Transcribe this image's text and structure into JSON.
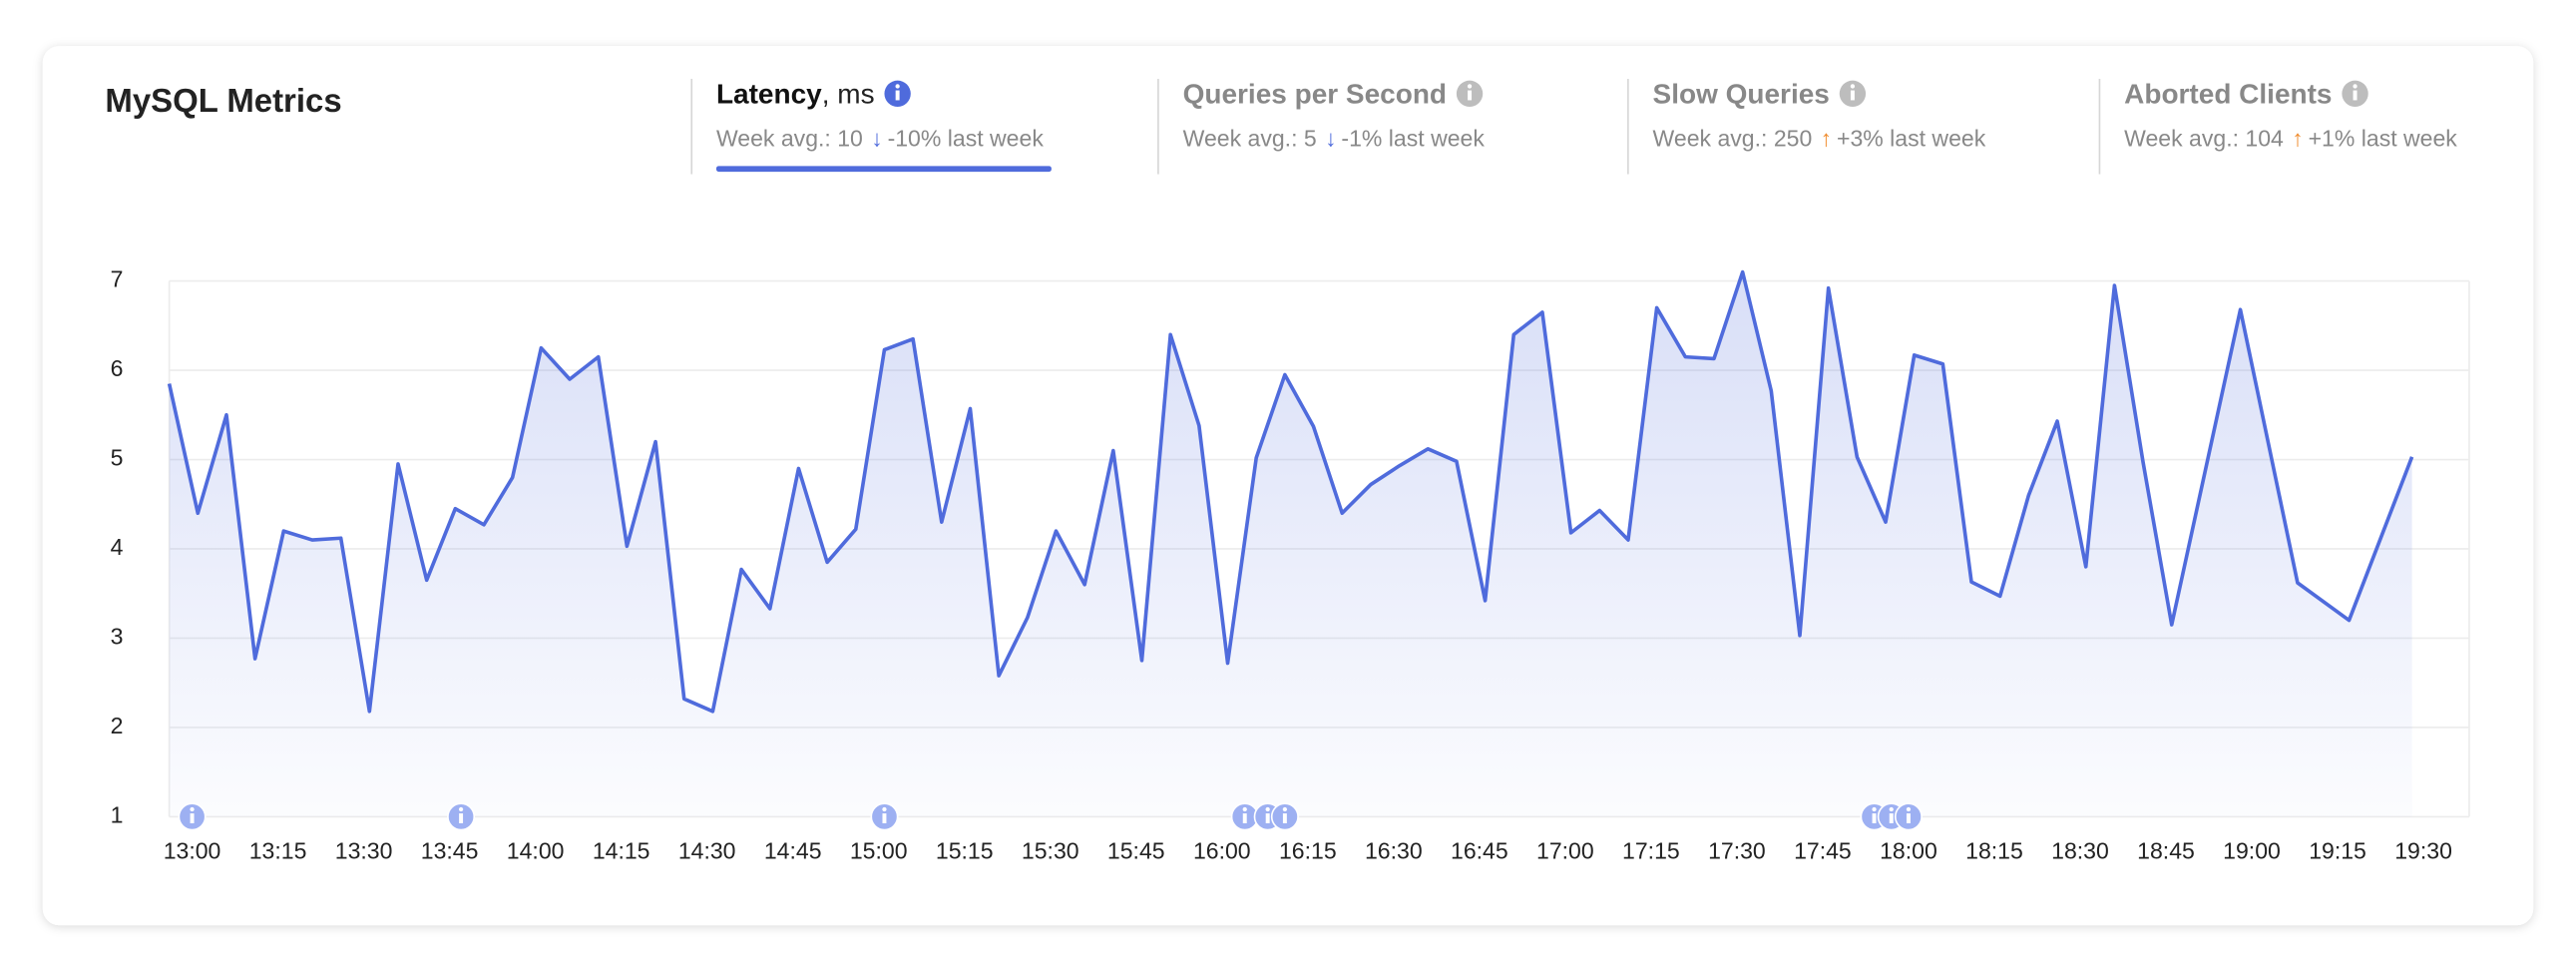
{
  "header": {
    "title": "MySQL Metrics"
  },
  "tabs": [
    {
      "name": "Latency",
      "unit": ", ms",
      "summary": "Week avg.: 10",
      "trend": "↓",
      "trend_color": "#4f6bdc",
      "change": "-10% last week",
      "active": true
    },
    {
      "name": "Queries per Second",
      "summary": "Week avg.: 5",
      "trend": "↓",
      "trend_color": "#4f6bdc",
      "change": "-1% last week",
      "active": false
    },
    {
      "name": "Slow Queries",
      "summary": "Week avg.: 250",
      "trend": "↑",
      "trend_color": "#f08c2e",
      "change": "+3% last week",
      "active": false
    },
    {
      "name": "Aborted Clients",
      "summary": "Week avg.: 104",
      "trend": "↑",
      "trend_color": "#f08c2e",
      "change": "+1% last week",
      "active": false
    }
  ],
  "chart_data": {
    "type": "line",
    "color": "#4f6bdc",
    "grid": true,
    "x": [
      "12:56",
      "13:01",
      "13:06",
      "13:11",
      "13:16",
      "13:21",
      "13:26",
      "13:31",
      "13:36",
      "13:41",
      "13:46",
      "13:51",
      "13:56",
      "14:01",
      "14:06",
      "14:11",
      "14:16",
      "14:21",
      "14:26",
      "14:31",
      "14:36",
      "14:41",
      "14:46",
      "14:51",
      "14:56",
      "15:01",
      "15:06",
      "15:11",
      "15:16",
      "15:21",
      "15:26",
      "15:31",
      "15:36",
      "15:41",
      "15:46",
      "15:51",
      "15:56",
      "16:01",
      "16:06",
      "16:11",
      "16:16",
      "16:21",
      "16:26",
      "16:31",
      "16:36",
      "16:41",
      "16:46",
      "16:51",
      "16:56",
      "17:01",
      "17:06",
      "17:11",
      "17:16",
      "17:21",
      "17:26",
      "17:31",
      "17:36",
      "17:41",
      "17:46",
      "17:51",
      "17:56",
      "18:01",
      "18:06",
      "18:11",
      "18:16",
      "18:21",
      "18:26",
      "18:31",
      "18:36",
      "18:41",
      "18:46",
      "18:58",
      "19:08",
      "19:17",
      "19:28"
    ],
    "values": [
      5.85,
      4.4,
      5.5,
      2.77,
      4.2,
      4.1,
      4.12,
      2.18,
      4.95,
      3.65,
      4.45,
      4.27,
      4.8,
      6.25,
      5.9,
      6.15,
      4.03,
      5.2,
      2.32,
      2.18,
      3.77,
      3.33,
      4.9,
      3.85,
      4.22,
      6.23,
      6.35,
      4.3,
      5.57,
      2.58,
      3.23,
      4.2,
      3.6,
      5.1,
      2.75,
      6.4,
      5.38,
      2.72,
      5.02,
      5.95,
      5.37,
      4.4,
      4.72,
      4.93,
      5.12,
      4.98,
      3.42,
      6.4,
      6.65,
      4.18,
      4.43,
      4.1,
      6.7,
      6.15,
      6.13,
      7.1,
      5.77,
      3.03,
      6.92,
      5.03,
      4.3,
      6.17,
      6.07,
      3.63,
      3.47,
      4.6,
      5.43,
      3.8,
      6.95,
      4.97,
      3.15,
      6.68,
      3.62,
      3.2,
      5.03
    ],
    "xlim": [
      "12:56",
      "19:38"
    ],
    "ylim": [
      1,
      7
    ],
    "yticks": [
      1,
      2,
      3,
      4,
      5,
      6,
      7
    ],
    "xticks": [
      "13:00",
      "13:15",
      "13:30",
      "13:45",
      "14:00",
      "14:15",
      "14:30",
      "14:45",
      "15:00",
      "15:15",
      "15:30",
      "15:45",
      "16:00",
      "16:15",
      "16:30",
      "16:45",
      "17:00",
      "17:15",
      "17:30",
      "17:45",
      "18:00",
      "18:15",
      "18:30",
      "18:45",
      "19:00",
      "19:15",
      "19:30"
    ],
    "annotations_x": [
      "13:00",
      "13:47",
      "15:01",
      "16:04",
      "16:08",
      "16:11",
      "17:54",
      "17:57",
      "18:00"
    ]
  }
}
